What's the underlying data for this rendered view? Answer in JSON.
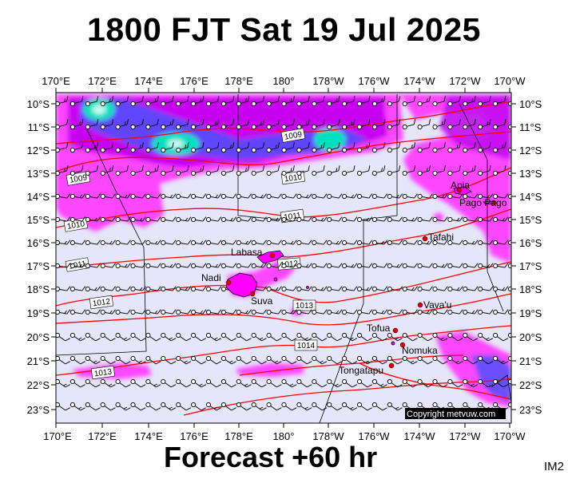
{
  "title": "1800 FJT Sat 19 Jul 2025",
  "footer": "Forecast +60 hr",
  "model_tag": "IM2",
  "copyright": "Copyright metvuw.com",
  "colors": {
    "ocean": "#e6e6fa",
    "precip_light": "#ff33ff",
    "precip_mid": "#c000f0",
    "precip_heavy": "#5050ff",
    "precip_core": "#00e0c0",
    "isobar": "#ff0000",
    "land": "#ff00ff",
    "town": "#e00000"
  },
  "lon_labels": [
    "170°E",
    "172°E",
    "174°E",
    "176°E",
    "178°E",
    "180°",
    "178°W",
    "176°W",
    "174°W",
    "172°W",
    "170°W"
  ],
  "lat_labels": [
    "10°S",
    "11°S",
    "12°S",
    "13°S",
    "14°S",
    "15°S",
    "16°S",
    "17°S",
    "18°S",
    "19°S",
    "20°S",
    "21°S",
    "22°S",
    "23°S"
  ],
  "isobars": [
    {
      "label": "1009"
    },
    {
      "label": "1009"
    },
    {
      "label": "1010"
    },
    {
      "label": "1010"
    },
    {
      "label": "1011"
    },
    {
      "label": "1011"
    },
    {
      "label": "1012"
    },
    {
      "label": "1012"
    },
    {
      "label": "1013"
    },
    {
      "label": "1013"
    },
    {
      "label": "1014"
    }
  ],
  "places": [
    {
      "name": "Apia"
    },
    {
      "name": "Pago Pago"
    },
    {
      "name": "Tafahi"
    },
    {
      "name": "Labasa"
    },
    {
      "name": "Nadi"
    },
    {
      "name": "Suva"
    },
    {
      "name": "Vava'u"
    },
    {
      "name": "Tofua"
    },
    {
      "name": "Nomuka"
    },
    {
      "name": "Tongatapu"
    }
  ]
}
